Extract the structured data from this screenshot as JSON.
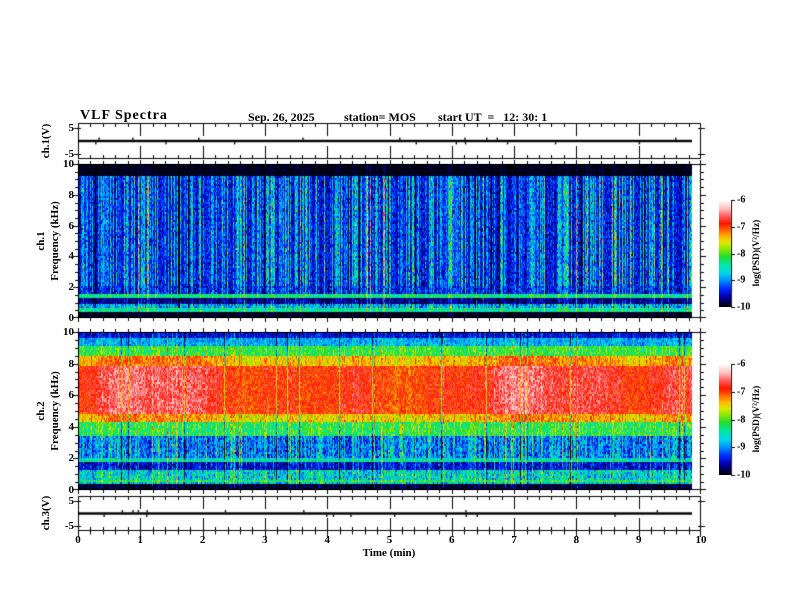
{
  "header": {
    "title": "VLF Spectra",
    "date": "Sep. 26, 2025",
    "station": "station= MOS",
    "start_ut": "start UT  =   12: 30: 1"
  },
  "xaxis": {
    "label": "Time (min)",
    "ticks": [
      "0",
      "1",
      "2",
      "3",
      "4",
      "5",
      "6",
      "7",
      "8",
      "9",
      "10"
    ],
    "min": 0,
    "max": 10,
    "minor_step_min": 0.2
  },
  "panels": {
    "wave1": {
      "ylabel": "ch.1(V)",
      "yticks": [
        "5",
        "-5"
      ]
    },
    "spec1": {
      "ylabel_ch": "ch.1",
      "ylabel_axis": "Frequency (kHz)",
      "yticks": [
        "10",
        "8",
        "6",
        "4",
        "2",
        "0"
      ]
    },
    "spec2": {
      "ylabel_ch": "ch.2",
      "ylabel_axis": "Frequency (kHz)",
      "yticks": [
        "10",
        "8",
        "6",
        "4",
        "2",
        "0"
      ]
    },
    "wave2": {
      "ylabel": "ch.3(V)",
      "yticks": [
        "5",
        "-5"
      ]
    }
  },
  "colorbar": {
    "label": "log(PSD)(V²/Hz)",
    "ticks": [
      "-6",
      "-7",
      "-8",
      "-9",
      "-10"
    ],
    "min": -10,
    "max": -6,
    "stops": [
      [
        0.0,
        "#000006"
      ],
      [
        0.04,
        "#000040"
      ],
      [
        0.1,
        "#0000b0"
      ],
      [
        0.17,
        "#0028ff"
      ],
      [
        0.25,
        "#0090ff"
      ],
      [
        0.32,
        "#00d8e8"
      ],
      [
        0.4,
        "#00e8a0"
      ],
      [
        0.47,
        "#20dc30"
      ],
      [
        0.54,
        "#88e800"
      ],
      [
        0.6,
        "#e0e800"
      ],
      [
        0.66,
        "#ffb400"
      ],
      [
        0.72,
        "#ff6000"
      ],
      [
        0.78,
        "#ff1400"
      ],
      [
        0.85,
        "#ff5c5c"
      ],
      [
        0.92,
        "#ffc0c0"
      ],
      [
        1.0,
        "#ffffff"
      ]
    ]
  },
  "colors": {
    "background": "#ffffff",
    "frame": "#000000",
    "text": "#000000"
  },
  "chart_data": [
    {
      "type": "line",
      "title": "ch.1(V) voltage monitor",
      "xlabel": "Time (min)",
      "x_range": [
        0,
        10
      ],
      "ylabel": "ch.1(V)",
      "y_ticks": [
        5,
        -5
      ],
      "y_constant": 0,
      "description": "flat trace at ~0 V for the whole 10 min record with a few tiny impulsive blips"
    },
    {
      "type": "heatmap",
      "title": "ch.1 VLF spectrogram",
      "xlabel": "Time (min)",
      "x_range": [
        0,
        10
      ],
      "ylabel": "Frequency (kHz)",
      "y_range": [
        0,
        10
      ],
      "z_label": "log(PSD)(V²/Hz)",
      "z_range": [
        -10,
        -6
      ],
      "colorbar_ticks": [
        -6,
        -7,
        -8,
        -9,
        -10
      ],
      "grid": false,
      "legend": "colorbar right",
      "texture": "near-black background with dense vertical impulsive sferic streaks (mostly cyan-green, occasional orange-red) between 0.5 and 9.2 kHz; narrow horizontal tone lines near 0.55 and 1.45 kHz; black above 9.25 kHz and below 0.45 kHz",
      "bands": [
        {
          "f_khz": [
            0,
            0.45
          ],
          "psd": -10.0,
          "noise": 0.12,
          "streak": 0.15
        },
        {
          "f_khz": [
            0.45,
            1.0
          ],
          "psd": -9.05,
          "noise": 0.55,
          "streak": 0.55
        },
        {
          "f_khz": [
            1.0,
            1.38
          ],
          "psd": -9.8,
          "noise": 0.25,
          "streak": 0.35
        },
        {
          "f_khz": [
            1.38,
            1.55
          ],
          "psd": -8.8,
          "noise": 0.35,
          "streak": 0.4
        },
        {
          "f_khz": [
            1.55,
            2.15
          ],
          "psd": -9.55,
          "noise": 0.35,
          "streak": 0.55
        },
        {
          "f_khz": [
            2.15,
            9.25
          ],
          "psd": -9.6,
          "noise": 0.3,
          "streak": 1.0
        },
        {
          "f_khz": [
            9.25,
            10
          ],
          "psd": -10.0,
          "noise": 0.1,
          "streak": 0.12
        }
      ],
      "tone_lines": [
        {
          "f_khz": 0.55,
          "psd": -8.6
        },
        {
          "f_khz": 1.45,
          "psd": -8.5
        }
      ]
    },
    {
      "type": "heatmap",
      "title": "ch.2 VLF spectrogram",
      "xlabel": "Time (min)",
      "x_range": [
        0,
        10
      ],
      "ylabel": "Frequency (kHz)",
      "y_range": [
        0,
        10
      ],
      "z_label": "log(PSD)(V²/Hz)",
      "z_range": [
        -10,
        -6
      ],
      "colorbar_ticks": [
        -6,
        -7,
        -8,
        -9,
        -10
      ],
      "grid": false,
      "legend": "colorbar right",
      "texture": "intense broadband red emission band ~4.5-8 kHz with slowly varying strength, yellow-green fringes above and below, blue-green toward 9-10 kHz, dark blue with vertical streaks below 3.5 kHz, horizontal tone lines near 0.6 and 1.9 kHz, black below 0.4 kHz",
      "bands": [
        {
          "f_khz": [
            0,
            0.4
          ],
          "psd": -10.0,
          "noise": 0.15,
          "streak": 0.25
        },
        {
          "f_khz": [
            0.4,
            1.35
          ],
          "psd": -8.85,
          "noise": 0.55,
          "streak": 0.5
        },
        {
          "f_khz": [
            1.35,
            1.8
          ],
          "psd": -9.65,
          "noise": 0.3,
          "streak": 0.45
        },
        {
          "f_khz": [
            1.8,
            2.0
          ],
          "psd": -8.75,
          "noise": 0.3,
          "streak": 0.35
        },
        {
          "f_khz": [
            2.0,
            3.5
          ],
          "psd": -9.35,
          "noise": 0.45,
          "streak": 0.75
        },
        {
          "f_khz": [
            3.5,
            4.3
          ],
          "psd": -8.35,
          "noise": 0.4,
          "streak": 0.45
        },
        {
          "f_khz": [
            4.3,
            4.9
          ],
          "psd": -7.55,
          "noise": 0.35,
          "streak": 0.3,
          "tmod": 0.25
        },
        {
          "f_khz": [
            4.9,
            7.9
          ],
          "psd": -6.9,
          "noise": 0.3,
          "streak": 0.15,
          "tmod": 0.35
        },
        {
          "f_khz": [
            7.9,
            8.5
          ],
          "psd": -7.5,
          "noise": 0.3,
          "streak": 0.3,
          "tmod": 0.3
        },
        {
          "f_khz": [
            8.5,
            9.2
          ],
          "psd": -8.25,
          "noise": 0.35,
          "streak": 0.3
        },
        {
          "f_khz": [
            9.2,
            9.65
          ],
          "psd": -9.0,
          "noise": 0.35,
          "streak": 0.3
        },
        {
          "f_khz": [
            9.65,
            10
          ],
          "psd": -9.6,
          "noise": 0.25,
          "streak": 0.3
        }
      ],
      "tone_lines": [
        {
          "f_khz": 0.6,
          "psd": -8.4
        },
        {
          "f_khz": 1.9,
          "psd": -8.6
        }
      ]
    },
    {
      "type": "line",
      "title": "ch.3(V) voltage monitor",
      "xlabel": "Time (min)",
      "x_range": [
        0,
        10
      ],
      "ylabel": "ch.3(V)",
      "y_ticks": [
        5,
        -5
      ],
      "y_constant": 0,
      "description": "flat trace at ~0 V for the whole 10 min record with a few tiny impulsive blips"
    }
  ]
}
